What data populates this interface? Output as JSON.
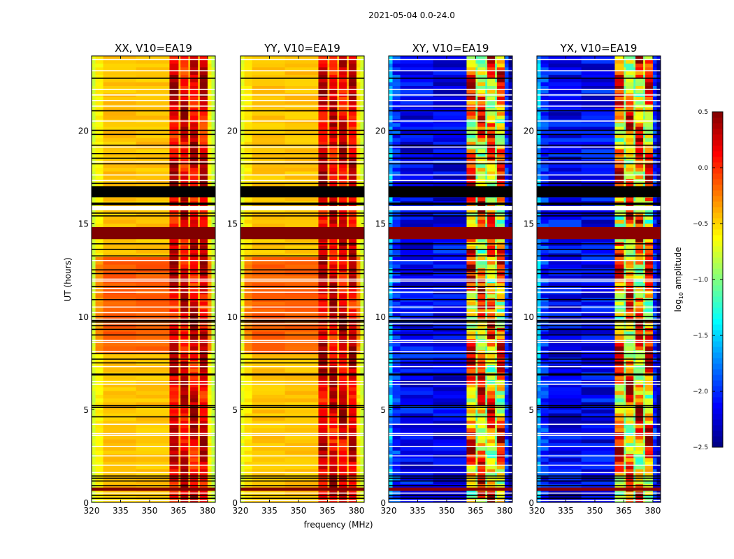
{
  "chart_data": {
    "type": "heatmap",
    "title": "2021-05-04 0.0-24.0",
    "xlabel": "frequency (MHz)",
    "ylabel": "UT (hours)",
    "xlim": [
      320,
      384
    ],
    "ylim": [
      0,
      24
    ],
    "xticks": [
      320,
      335,
      350,
      365,
      380
    ],
    "yticks": [
      0,
      5,
      10,
      15,
      20
    ],
    "row_step_hours": 0.2,
    "colorbar": {
      "label_base": "log",
      "label_sub": "10",
      "label_rest": " amplitude",
      "colormap": "jet",
      "range": [
        -2.5,
        0.5
      ],
      "ticks": [
        0.5,
        0.0,
        -0.5,
        -1.0,
        -1.5,
        -2.0,
        -2.5
      ],
      "tick_labels": [
        "0.5",
        "0.0",
        "−0.5",
        "−1.0",
        "−1.5",
        "−2.0",
        "−2.5"
      ]
    },
    "channel_bands": [
      {
        "range": [
          320,
          322
        ],
        "kind": "edge_left"
      },
      {
        "range": [
          322,
          326
        ],
        "kind": "body_edge"
      },
      {
        "range": [
          326,
          343
        ],
        "kind": "body"
      },
      {
        "range": [
          343,
          360.3
        ],
        "kind": "body"
      },
      {
        "range": [
          360.3,
          365
        ],
        "kind": "rfi"
      },
      {
        "range": [
          365,
          366
        ],
        "kind": "gap"
      },
      {
        "range": [
          366,
          370
        ],
        "kind": "rfi"
      },
      {
        "range": [
          370,
          371
        ],
        "kind": "gap"
      },
      {
        "range": [
          371,
          375
        ],
        "kind": "rfi"
      },
      {
        "range": [
          375,
          376
        ],
        "kind": "gap"
      },
      {
        "range": [
          376,
          380
        ],
        "kind": "rfi"
      },
      {
        "range": [
          380,
          382
        ],
        "kind": "body_edge"
      },
      {
        "range": [
          382,
          384
        ],
        "kind": "edge_right"
      }
    ],
    "panels": [
      {
        "title": "XX, V10=EA19",
        "levels": {
          "edge_left": -0.75,
          "body_edge": -0.6,
          "body": -0.45,
          "rfi": 0.2,
          "gap": -0.4,
          "edge_right": -0.8
        },
        "elevated_hours": [
          8.0,
          13.2
        ],
        "elevated_offset": 0.3,
        "noise": 0.06,
        "rfi_noise": 0.2
      },
      {
        "title": "YY, V10=EA19",
        "levels": {
          "edge_left": -0.7,
          "body_edge": -0.55,
          "body": -0.45,
          "rfi": 0.22,
          "gap": -0.4,
          "edge_right": -0.75
        },
        "elevated_hours": [
          8.0,
          13.2
        ],
        "elevated_offset": 0.3,
        "noise": 0.06,
        "rfi_noise": 0.2
      },
      {
        "title": "XY, V10=EA19",
        "levels": {
          "edge_left": -1.6,
          "body_edge": -2.0,
          "body": -2.15,
          "rfi": -0.3,
          "gap": -0.95,
          "edge_right": -2.45
        },
        "elevated_hours": [
          0,
          0
        ],
        "elevated_offset": 0,
        "noise": 0.25,
        "rfi_noise": 0.6
      },
      {
        "title": "YX, V10=EA19",
        "levels": {
          "edge_left": -1.6,
          "body_edge": -2.0,
          "body": -2.15,
          "rfi": -0.3,
          "gap": -0.95,
          "edge_right": -2.45
        },
        "elevated_hours": [
          0,
          0
        ],
        "elevated_offset": 0,
        "noise": 0.25,
        "rfi_noise": 0.6
      }
    ],
    "flagged_black_blocks_hours": [
      [
        16.4,
        17.0
      ],
      [
        15.98,
        16.12
      ]
    ],
    "flagged_white_blocks_hours": [
      [
        15.7,
        15.93
      ]
    ],
    "saturated_blocks_hours": [
      [
        14.15,
        14.8
      ],
      [
        0.62,
        0.8
      ]
    ],
    "flagged_black_lines_hours": [
      22.8,
      21.05,
      20.0,
      19.78,
      19.2,
      18.75,
      18.5,
      18.2,
      17.15,
      15.55,
      15.4,
      13.9,
      13.6,
      13.25,
      12.5,
      12.3,
      11.6,
      10.9,
      10.0,
      9.78,
      9.7,
      9.5,
      9.3,
      9.0,
      8.0,
      7.7,
      7.5,
      6.9,
      6.85,
      5.2,
      5.1,
      4.6,
      1.42,
      1.3,
      1.15,
      0.9,
      0.38,
      0.22
    ],
    "flagged_white_lines_hours": [
      23.8,
      23.2,
      22.2,
      21.9,
      21.6,
      21.3,
      20.5,
      19.1,
      18.3,
      17.6,
      17.3,
      13.0,
      12.0,
      11.9,
      11.5,
      11.3,
      10.5,
      10.2,
      9.85,
      9.6,
      8.7,
      8.6,
      8.1,
      7.3,
      6.5,
      6.35,
      4.2,
      3.7,
      3.6,
      3.0,
      2.5,
      2.0,
      1.6,
      0.5,
      0.1
    ]
  }
}
